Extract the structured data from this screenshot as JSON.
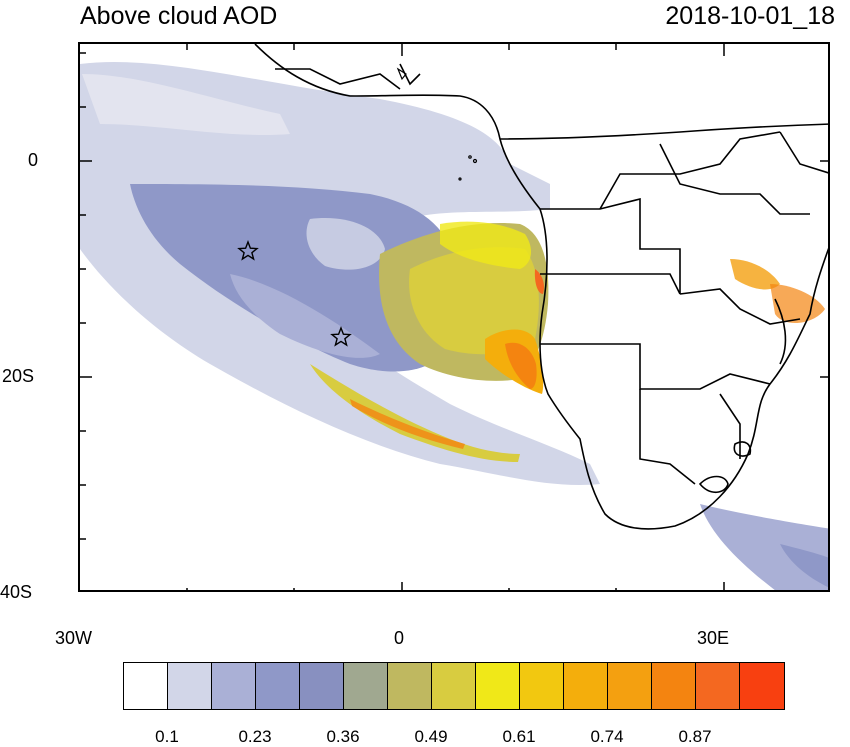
{
  "title": "Above cloud AOD",
  "timestamp": "2018-10-01_18",
  "axes": {
    "x_ticks": [
      "30W",
      "0",
      "30E"
    ],
    "y_ticks": [
      "0",
      "20S",
      "40S"
    ]
  },
  "colorbar": {
    "colors": [
      "#ffffff",
      "#d2d6e8",
      "#aab0d6",
      "#8f98c8",
      "#8890c0",
      "#a0a890",
      "#bfb860",
      "#d8cc40",
      "#f0e818",
      "#f2c810",
      "#f4ae0c",
      "#f4a010",
      "#f48410",
      "#f46820",
      "#f84010"
    ],
    "labels": [
      "0.1",
      "0.23",
      "0.36",
      "0.49",
      "0.61",
      "0.74",
      "0.87"
    ]
  },
  "markers": [
    "star-marker-1",
    "star-marker-2"
  ]
}
